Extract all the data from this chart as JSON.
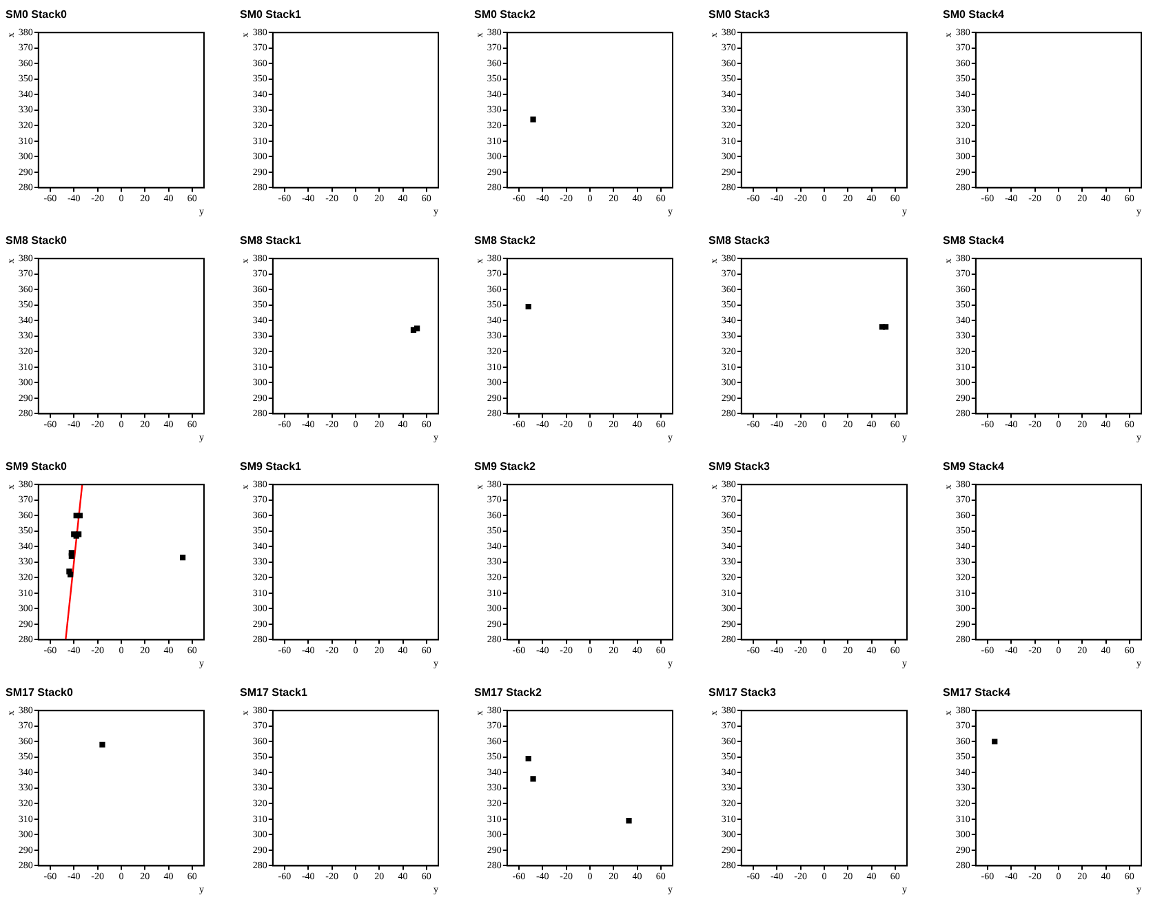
{
  "chart_data": [
    {
      "type": "scatter",
      "title": "SM0 Stack0",
      "xlabel": "y",
      "ylabel": "x",
      "xlim": [
        -70,
        70
      ],
      "ylim": [
        280,
        380
      ],
      "xticks": [
        -60,
        -40,
        -20,
        0,
        20,
        40,
        60
      ],
      "yticks": [
        280,
        290,
        300,
        310,
        320,
        330,
        340,
        350,
        360,
        370,
        380
      ],
      "grid": false,
      "legend": false
    },
    {
      "type": "scatter",
      "title": "SM0 Stack1",
      "xlabel": "y",
      "ylabel": "x",
      "xlim": [
        -70,
        70
      ],
      "ylim": [
        280,
        380
      ],
      "xticks": [
        -60,
        -40,
        -20,
        0,
        20,
        40,
        60
      ],
      "yticks": [
        280,
        290,
        300,
        310,
        320,
        330,
        340,
        350,
        360,
        370,
        380
      ],
      "grid": false,
      "legend": false
    },
    {
      "type": "scatter",
      "title": "SM0 Stack2",
      "xlabel": "y",
      "ylabel": "x",
      "xlim": [
        -70,
        70
      ],
      "ylim": [
        280,
        380
      ],
      "xticks": [
        -60,
        -40,
        -20,
        0,
        20,
        40,
        60
      ],
      "yticks": [
        280,
        290,
        300,
        310,
        320,
        330,
        340,
        350,
        360,
        370,
        380
      ],
      "grid": false,
      "legend": false,
      "marker": "square",
      "series": [
        {
          "color": "#000000",
          "x": [
            -48
          ],
          "values": [
            324
          ]
        }
      ]
    },
    {
      "type": "scatter",
      "title": "SM0 Stack3",
      "xlabel": "y",
      "ylabel": "x",
      "xlim": [
        -70,
        70
      ],
      "ylim": [
        280,
        380
      ],
      "xticks": [
        -60,
        -40,
        -20,
        0,
        20,
        40,
        60
      ],
      "yticks": [
        280,
        290,
        300,
        310,
        320,
        330,
        340,
        350,
        360,
        370,
        380
      ],
      "grid": false,
      "legend": false
    },
    {
      "type": "scatter",
      "title": "SM0 Stack4",
      "xlabel": "y",
      "ylabel": "x",
      "xlim": [
        -70,
        70
      ],
      "ylim": [
        280,
        380
      ],
      "xticks": [
        -60,
        -40,
        -20,
        0,
        20,
        40,
        60
      ],
      "yticks": [
        280,
        290,
        300,
        310,
        320,
        330,
        340,
        350,
        360,
        370,
        380
      ],
      "grid": false,
      "legend": false
    },
    {
      "type": "scatter",
      "title": "SM8 Stack0",
      "xlabel": "y",
      "ylabel": "x",
      "xlim": [
        -70,
        70
      ],
      "ylim": [
        280,
        380
      ],
      "xticks": [
        -60,
        -40,
        -20,
        0,
        20,
        40,
        60
      ],
      "yticks": [
        280,
        290,
        300,
        310,
        320,
        330,
        340,
        350,
        360,
        370,
        380
      ],
      "grid": false,
      "legend": false
    },
    {
      "type": "scatter",
      "title": "SM8 Stack1",
      "xlabel": "y",
      "ylabel": "x",
      "xlim": [
        -70,
        70
      ],
      "ylim": [
        280,
        380
      ],
      "xticks": [
        -60,
        -40,
        -20,
        0,
        20,
        40,
        60
      ],
      "yticks": [
        280,
        290,
        300,
        310,
        320,
        330,
        340,
        350,
        360,
        370,
        380
      ],
      "grid": false,
      "legend": false,
      "marker": "square",
      "series": [
        {
          "color": "#000000",
          "x": [
            49,
            52
          ],
          "values": [
            334,
            335
          ]
        }
      ]
    },
    {
      "type": "scatter",
      "title": "SM8 Stack2",
      "xlabel": "y",
      "ylabel": "x",
      "xlim": [
        -70,
        70
      ],
      "ylim": [
        280,
        380
      ],
      "xticks": [
        -60,
        -40,
        -20,
        0,
        20,
        40,
        60
      ],
      "yticks": [
        280,
        290,
        300,
        310,
        320,
        330,
        340,
        350,
        360,
        370,
        380
      ],
      "grid": false,
      "legend": false,
      "marker": "square",
      "series": [
        {
          "color": "#000000",
          "x": [
            -52
          ],
          "values": [
            349
          ]
        }
      ]
    },
    {
      "type": "scatter",
      "title": "SM8 Stack3",
      "xlabel": "y",
      "ylabel": "x",
      "xlim": [
        -70,
        70
      ],
      "ylim": [
        280,
        380
      ],
      "xticks": [
        -60,
        -40,
        -20,
        0,
        20,
        40,
        60
      ],
      "yticks": [
        280,
        290,
        300,
        310,
        320,
        330,
        340,
        350,
        360,
        370,
        380
      ],
      "grid": false,
      "legend": false,
      "marker": "square",
      "series": [
        {
          "color": "#000000",
          "x": [
            49,
            52
          ],
          "values": [
            336,
            336
          ]
        }
      ]
    },
    {
      "type": "scatter",
      "title": "SM8 Stack4",
      "xlabel": "y",
      "ylabel": "x",
      "xlim": [
        -70,
        70
      ],
      "ylim": [
        280,
        380
      ],
      "xticks": [
        -60,
        -40,
        -20,
        0,
        20,
        40,
        60
      ],
      "yticks": [
        280,
        290,
        300,
        310,
        320,
        330,
        340,
        350,
        360,
        370,
        380
      ],
      "grid": false,
      "legend": false
    },
    {
      "type": "scatter",
      "title": "SM9 Stack0",
      "xlabel": "y",
      "ylabel": "x",
      "xlim": [
        -70,
        70
      ],
      "ylim": [
        280,
        380
      ],
      "xticks": [
        -60,
        -40,
        -20,
        0,
        20,
        40,
        60
      ],
      "yticks": [
        280,
        290,
        300,
        310,
        320,
        330,
        340,
        350,
        360,
        370,
        380
      ],
      "grid": false,
      "legend": false,
      "marker": "square",
      "series": [
        {
          "color": "#000000",
          "x": [
            -38,
            -35,
            -40,
            -36,
            -38,
            -42,
            -42,
            -44,
            -43,
            52
          ],
          "values": [
            360,
            360,
            348,
            348,
            347,
            336,
            334,
            324,
            322,
            333
          ]
        },
        {
          "type": "line",
          "color": "#ff0000",
          "marker": "none",
          "x": [
            -47,
            -33
          ],
          "values": [
            280,
            380
          ]
        }
      ]
    },
    {
      "type": "scatter",
      "title": "SM9 Stack1",
      "xlabel": "y",
      "ylabel": "x",
      "xlim": [
        -70,
        70
      ],
      "ylim": [
        280,
        380
      ],
      "xticks": [
        -60,
        -40,
        -20,
        0,
        20,
        40,
        60
      ],
      "yticks": [
        280,
        290,
        300,
        310,
        320,
        330,
        340,
        350,
        360,
        370,
        380
      ],
      "grid": false,
      "legend": false
    },
    {
      "type": "scatter",
      "title": "SM9 Stack2",
      "xlabel": "y",
      "ylabel": "x",
      "xlim": [
        -70,
        70
      ],
      "ylim": [
        280,
        380
      ],
      "xticks": [
        -60,
        -40,
        -20,
        0,
        20,
        40,
        60
      ],
      "yticks": [
        280,
        290,
        300,
        310,
        320,
        330,
        340,
        350,
        360,
        370,
        380
      ],
      "grid": false,
      "legend": false
    },
    {
      "type": "scatter",
      "title": "SM9 Stack3",
      "xlabel": "y",
      "ylabel": "x",
      "xlim": [
        -70,
        70
      ],
      "ylim": [
        280,
        380
      ],
      "xticks": [
        -60,
        -40,
        -20,
        0,
        20,
        40,
        60
      ],
      "yticks": [
        280,
        290,
        300,
        310,
        320,
        330,
        340,
        350,
        360,
        370,
        380
      ],
      "grid": false,
      "legend": false
    },
    {
      "type": "scatter",
      "title": "SM9 Stack4",
      "xlabel": "y",
      "ylabel": "x",
      "xlim": [
        -70,
        70
      ],
      "ylim": [
        280,
        380
      ],
      "xticks": [
        -60,
        -40,
        -20,
        0,
        20,
        40,
        60
      ],
      "yticks": [
        280,
        290,
        300,
        310,
        320,
        330,
        340,
        350,
        360,
        370,
        380
      ],
      "grid": false,
      "legend": false
    },
    {
      "type": "scatter",
      "title": "SM17 Stack0",
      "xlabel": "y",
      "ylabel": "x",
      "xlim": [
        -70,
        70
      ],
      "ylim": [
        280,
        380
      ],
      "xticks": [
        -60,
        -40,
        -20,
        0,
        20,
        40,
        60
      ],
      "yticks": [
        280,
        290,
        300,
        310,
        320,
        330,
        340,
        350,
        360,
        370,
        380
      ],
      "grid": false,
      "legend": false,
      "marker": "square",
      "series": [
        {
          "color": "#000000",
          "x": [
            -16
          ],
          "values": [
            358
          ]
        }
      ]
    },
    {
      "type": "scatter",
      "title": "SM17 Stack1",
      "xlabel": "y",
      "ylabel": "x",
      "xlim": [
        -70,
        70
      ],
      "ylim": [
        280,
        380
      ],
      "xticks": [
        -60,
        -40,
        -20,
        0,
        20,
        40,
        60
      ],
      "yticks": [
        280,
        290,
        300,
        310,
        320,
        330,
        340,
        350,
        360,
        370,
        380
      ],
      "grid": false,
      "legend": false
    },
    {
      "type": "scatter",
      "title": "SM17 Stack2",
      "xlabel": "y",
      "ylabel": "x",
      "xlim": [
        -70,
        70
      ],
      "ylim": [
        280,
        380
      ],
      "xticks": [
        -60,
        -40,
        -20,
        0,
        20,
        40,
        60
      ],
      "yticks": [
        280,
        290,
        300,
        310,
        320,
        330,
        340,
        350,
        360,
        370,
        380
      ],
      "grid": false,
      "legend": false,
      "marker": "square",
      "series": [
        {
          "color": "#000000",
          "x": [
            -52,
            -48,
            33
          ],
          "values": [
            349,
            336,
            309
          ]
        }
      ]
    },
    {
      "type": "scatter",
      "title": "SM17 Stack3",
      "xlabel": "y",
      "ylabel": "x",
      "xlim": [
        -70,
        70
      ],
      "ylim": [
        280,
        380
      ],
      "xticks": [
        -60,
        -40,
        -20,
        0,
        20,
        40,
        60
      ],
      "yticks": [
        280,
        290,
        300,
        310,
        320,
        330,
        340,
        350,
        360,
        370,
        380
      ],
      "grid": false,
      "legend": false
    },
    {
      "type": "scatter",
      "title": "SM17 Stack4",
      "xlabel": "y",
      "ylabel": "x",
      "xlim": [
        -70,
        70
      ],
      "ylim": [
        280,
        380
      ],
      "xticks": [
        -60,
        -40,
        -20,
        0,
        20,
        40,
        60
      ],
      "yticks": [
        280,
        290,
        300,
        310,
        320,
        330,
        340,
        350,
        360,
        370,
        380
      ],
      "grid": false,
      "legend": false,
      "marker": "square",
      "series": [
        {
          "color": "#000000",
          "x": [
            -54
          ],
          "values": [
            360
          ]
        }
      ]
    }
  ]
}
